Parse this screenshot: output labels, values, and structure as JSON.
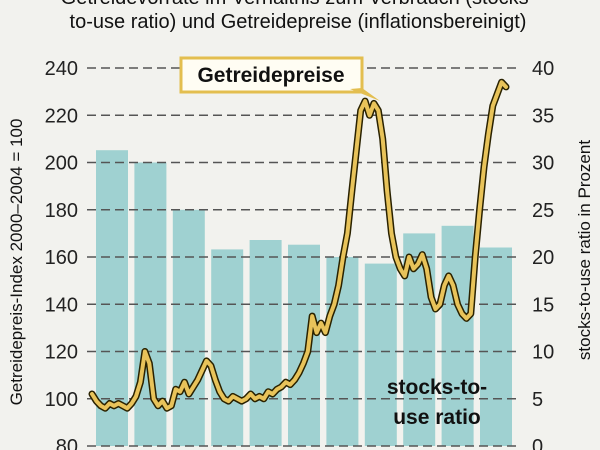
{
  "header": {
    "line1": "Getreidevorräte im Verhältnis zum Verbrauch (stocks-",
    "line2": "to-use ratio) und Getreidepreise (inflationsbereinigt)"
  },
  "colors": {
    "bar": "#9fd1d1",
    "line": "#e8c35a",
    "line_outline": "#2a2200",
    "grid": "#555555",
    "background": "#f2f2ee"
  },
  "chart_data": {
    "type": "bar+line",
    "left_axis": {
      "label": "Getreidepreis-Index 2000–2004 = 100",
      "range": [
        80,
        240
      ],
      "ticks": [
        "240",
        "220",
        "200",
        "180",
        "160",
        "140",
        "120",
        "100",
        "80"
      ]
    },
    "right_axis": {
      "label": "stocks-to-use ratio in Prozent",
      "range": [
        0,
        40
      ],
      "ticks": [
        "40",
        "35",
        "30",
        "25",
        "20",
        "15",
        "10",
        "5",
        "0"
      ]
    },
    "grid": true,
    "series": [
      {
        "name": "stocks-to-use ratio",
        "type": "bar",
        "axis": "right",
        "values": [
          31.3,
          30.0,
          25.0,
          20.8,
          21.8,
          21.3,
          20.0,
          19.3,
          22.5,
          23.3,
          21.0
        ]
      },
      {
        "name": "Getreidepreise",
        "type": "line",
        "axis": "left",
        "values": [
          102,
          99,
          97,
          96,
          98,
          97,
          98,
          97,
          96,
          98,
          101,
          107,
          120,
          115,
          100,
          97,
          99,
          96,
          97,
          104,
          103,
          107,
          102,
          105,
          108,
          112,
          116,
          114,
          108,
          103,
          100,
          99,
          101,
          100,
          99,
          100,
          102,
          100,
          101,
          100,
          103,
          102,
          104,
          105,
          107,
          106,
          108,
          111,
          115,
          120,
          135,
          128,
          132,
          128,
          135,
          140,
          148,
          160,
          170,
          188,
          205,
          222,
          226,
          220,
          225,
          222,
          210,
          188,
          170,
          160,
          155,
          152,
          160,
          155,
          157,
          161,
          155,
          143,
          138,
          140,
          148,
          152,
          148,
          140,
          136,
          134,
          136,
          160,
          180,
          198,
          212,
          224,
          229,
          234,
          232
        ]
      }
    ],
    "annotations": [
      {
        "text_lines": [
          "stocks-to-",
          "use ratio"
        ]
      }
    ],
    "price_label": "Getreidepreise"
  }
}
